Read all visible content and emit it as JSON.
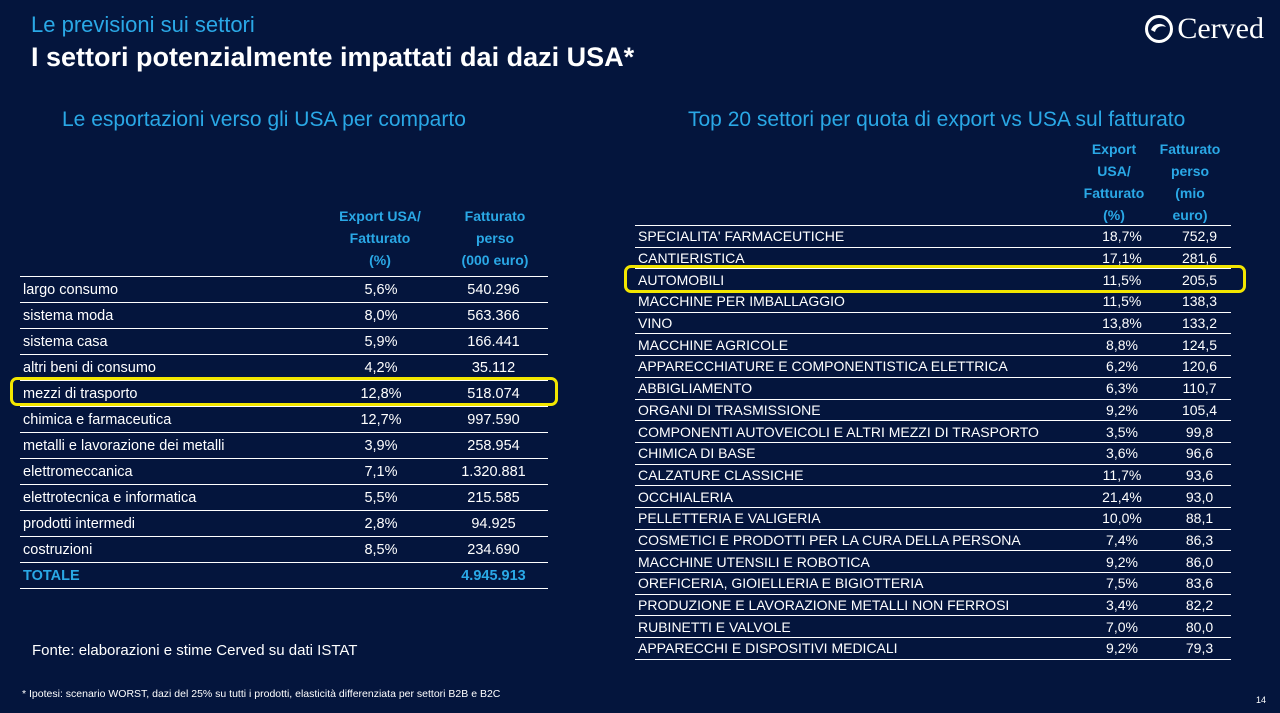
{
  "header": {
    "subtitle": "Le previsioni sui settori",
    "title": "I settori potenzialmente impattati dai dazi USA*",
    "logo_text": "Cerved"
  },
  "left": {
    "title": "Le esportazioni verso gli USA per comparto",
    "col2_header": [
      "Export USA/",
      "Fatturato",
      "(%)"
    ],
    "col3_header": [
      "Fatturato",
      "perso",
      "(000 euro)"
    ],
    "rows": [
      {
        "name": "largo consumo",
        "pct": "5,6%",
        "value": "540.296"
      },
      {
        "name": "sistema moda",
        "pct": "8,0%",
        "value": "563.366"
      },
      {
        "name": "sistema casa",
        "pct": "5,9%",
        "value": "166.441"
      },
      {
        "name": "altri beni di consumo",
        "pct": "4,2%",
        "value": "35.112"
      },
      {
        "name": "mezzi di trasporto",
        "pct": "12,8%",
        "value": "518.074"
      },
      {
        "name": "chimica e farmaceutica",
        "pct": "12,7%",
        "value": "997.590"
      },
      {
        "name": "metalli e lavorazione dei metalli",
        "pct": "3,9%",
        "value": "258.954"
      },
      {
        "name": "elettromeccanica",
        "pct": "7,1%",
        "value": "1.320.881"
      },
      {
        "name": "elettrotecnica e informatica",
        "pct": "5,5%",
        "value": "215.585"
      },
      {
        "name": "prodotti intermedi",
        "pct": "2,8%",
        "value": "94.925"
      },
      {
        "name": "costruzioni",
        "pct": "8,5%",
        "value": "234.690"
      }
    ],
    "total": {
      "name": "TOTALE",
      "pct": "",
      "value": "4.945.913"
    },
    "highlighted_row": "mezzi di trasporto"
  },
  "right": {
    "title": "Top 20 settori per quota di export vs USA sul fatturato",
    "col2_header": [
      "Export",
      "USA/",
      "Fatturato",
      "(%)"
    ],
    "col3_header": [
      "Fatturato",
      "perso",
      "(mio",
      "euro)"
    ],
    "rows": [
      {
        "name": "SPECIALITA' FARMACEUTICHE",
        "pct": "18,7%",
        "value": "752,9"
      },
      {
        "name": "CANTIERISTICA",
        "pct": "17,1%",
        "value": "281,6"
      },
      {
        "name": "AUTOMOBILI",
        "pct": "11,5%",
        "value": "205,5"
      },
      {
        "name": "MACCHINE PER IMBALLAGGIO",
        "pct": "11,5%",
        "value": "138,3"
      },
      {
        "name": "VINO",
        "pct": "13,8%",
        "value": "133,2"
      },
      {
        "name": "MACCHINE AGRICOLE",
        "pct": "8,8%",
        "value": "124,5"
      },
      {
        "name": "APPARECCHIATURE E COMPONENTISTICA ELETTRICA",
        "pct": "6,2%",
        "value": "120,6"
      },
      {
        "name": "ABBIGLIAMENTO",
        "pct": "6,3%",
        "value": "110,7"
      },
      {
        "name": "ORGANI DI TRASMISSIONE",
        "pct": "9,2%",
        "value": "105,4"
      },
      {
        "name": "COMPONENTI AUTOVEICOLI E ALTRI MEZZI DI TRASPORTO",
        "pct": "3,5%",
        "value": "99,8"
      },
      {
        "name": "CHIMICA DI BASE",
        "pct": "3,6%",
        "value": "96,6"
      },
      {
        "name": "CALZATURE CLASSICHE",
        "pct": "11,7%",
        "value": "93,6"
      },
      {
        "name": "OCCHIALERIA",
        "pct": "21,4%",
        "value": "93,0"
      },
      {
        "name": "PELLETTERIA E VALIGERIA",
        "pct": "10,0%",
        "value": "88,1"
      },
      {
        "name": "COSMETICI E PRODOTTI PER LA CURA DELLA PERSONA",
        "pct": "7,4%",
        "value": "86,3"
      },
      {
        "name": "MACCHINE UTENSILI E ROBOTICA",
        "pct": "9,2%",
        "value": "86,0"
      },
      {
        "name": "OREFICERIA, GIOIELLERIA E BIGIOTTERIA",
        "pct": "7,5%",
        "value": "83,6"
      },
      {
        "name": "PRODUZIONE E LAVORAZIONE METALLI NON FERROSI",
        "pct": "3,4%",
        "value": "82,2"
      },
      {
        "name": "RUBINETTI E VALVOLE",
        "pct": "7,0%",
        "value": "80,0"
      },
      {
        "name": "APPARECCHI E DISPOSITIVI MEDICALI",
        "pct": "9,2%",
        "value": "79,3"
      }
    ],
    "highlighted_row": "AUTOMOBILI"
  },
  "footer": {
    "source": "Fonte: elaborazioni e stime Cerved su dati ISTAT",
    "footnote": "* Ipotesi: scenario WORST, dazi del 25% su tutti i prodotti, elasticità differenziata per settori B2B e B2C",
    "page_number": "14"
  },
  "colors": {
    "background": "#04153d",
    "accent": "#2aa8e6",
    "highlight": "#f3e600"
  }
}
